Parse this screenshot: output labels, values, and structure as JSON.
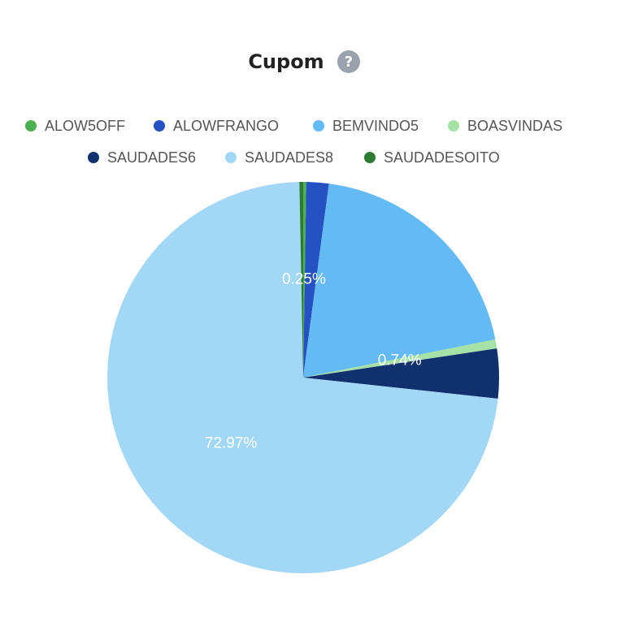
{
  "chart_data": {
    "type": "pie",
    "title": "Cupom",
    "title_icon": "?",
    "categories": [
      "ALOW5OFF",
      "ALOWFRANGO",
      "BEMVINDO5",
      "BOASVINDAS",
      "SAUDADES6",
      "SAUDADES8",
      "SAUDADESOITO"
    ],
    "values": [
      0.25,
      1.85,
      19.78,
      0.74,
      4.1,
      72.97,
      0.31
    ],
    "value_labels": [
      "0.25%",
      null,
      null,
      "0.74%",
      null,
      "72.97%",
      null
    ],
    "colors": [
      "#4cb050",
      "#2551c2",
      "#63baf5",
      "#a6e2a8",
      "#11306e",
      "#a3d7f6",
      "#2e7c33"
    ]
  }
}
